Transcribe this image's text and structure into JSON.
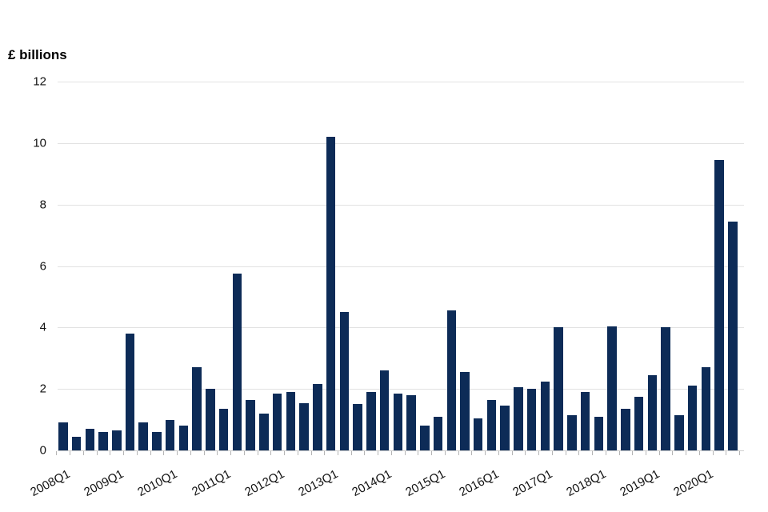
{
  "chart_data": {
    "type": "bar",
    "title": "",
    "ylabel": "£ billions",
    "xlabel": "",
    "ylim": [
      0,
      12
    ],
    "yticks": [
      0,
      2,
      4,
      6,
      8,
      10,
      12
    ],
    "grid": "horizontal",
    "legend": "none",
    "bar_color": "#0d2b57",
    "gridline_color": "#e2e2e2",
    "x_label_every": 4,
    "categories": [
      "2008Q1",
      "2008Q2",
      "2008Q3",
      "2008Q4",
      "2009Q1",
      "2009Q2",
      "2009Q3",
      "2009Q4",
      "2010Q1",
      "2010Q2",
      "2010Q3",
      "2010Q4",
      "2011Q1",
      "2011Q2",
      "2011Q3",
      "2011Q4",
      "2012Q1",
      "2012Q2",
      "2012Q3",
      "2012Q4",
      "2013Q1",
      "2013Q2",
      "2013Q3",
      "2013Q4",
      "2014Q1",
      "2014Q2",
      "2014Q3",
      "2014Q4",
      "2015Q1",
      "2015Q2",
      "2015Q3",
      "2015Q4",
      "2016Q1",
      "2016Q2",
      "2016Q3",
      "2016Q4",
      "2017Q1",
      "2017Q2",
      "2017Q3",
      "2017Q4",
      "2018Q1",
      "2018Q2",
      "2018Q3",
      "2018Q4",
      "2019Q1",
      "2019Q2",
      "2019Q3",
      "2019Q4",
      "2020Q1",
      "2020Q2",
      "2020Q3"
    ],
    "values": [
      0.9,
      0.45,
      0.7,
      0.6,
      0.65,
      3.8,
      0.9,
      0.6,
      1.0,
      0.8,
      2.7,
      2.0,
      1.35,
      5.75,
      1.65,
      1.2,
      1.85,
      1.9,
      1.55,
      2.15,
      10.2,
      4.5,
      1.5,
      1.9,
      2.6,
      1.85,
      1.8,
      0.8,
      1.1,
      4.55,
      2.55,
      1.05,
      1.65,
      1.45,
      2.05,
      2.0,
      2.25,
      4.0,
      1.15,
      1.9,
      1.1,
      4.05,
      1.35,
      1.75,
      2.45,
      4.0,
      1.15,
      2.1,
      2.7,
      9.45,
      7.45
    ]
  }
}
